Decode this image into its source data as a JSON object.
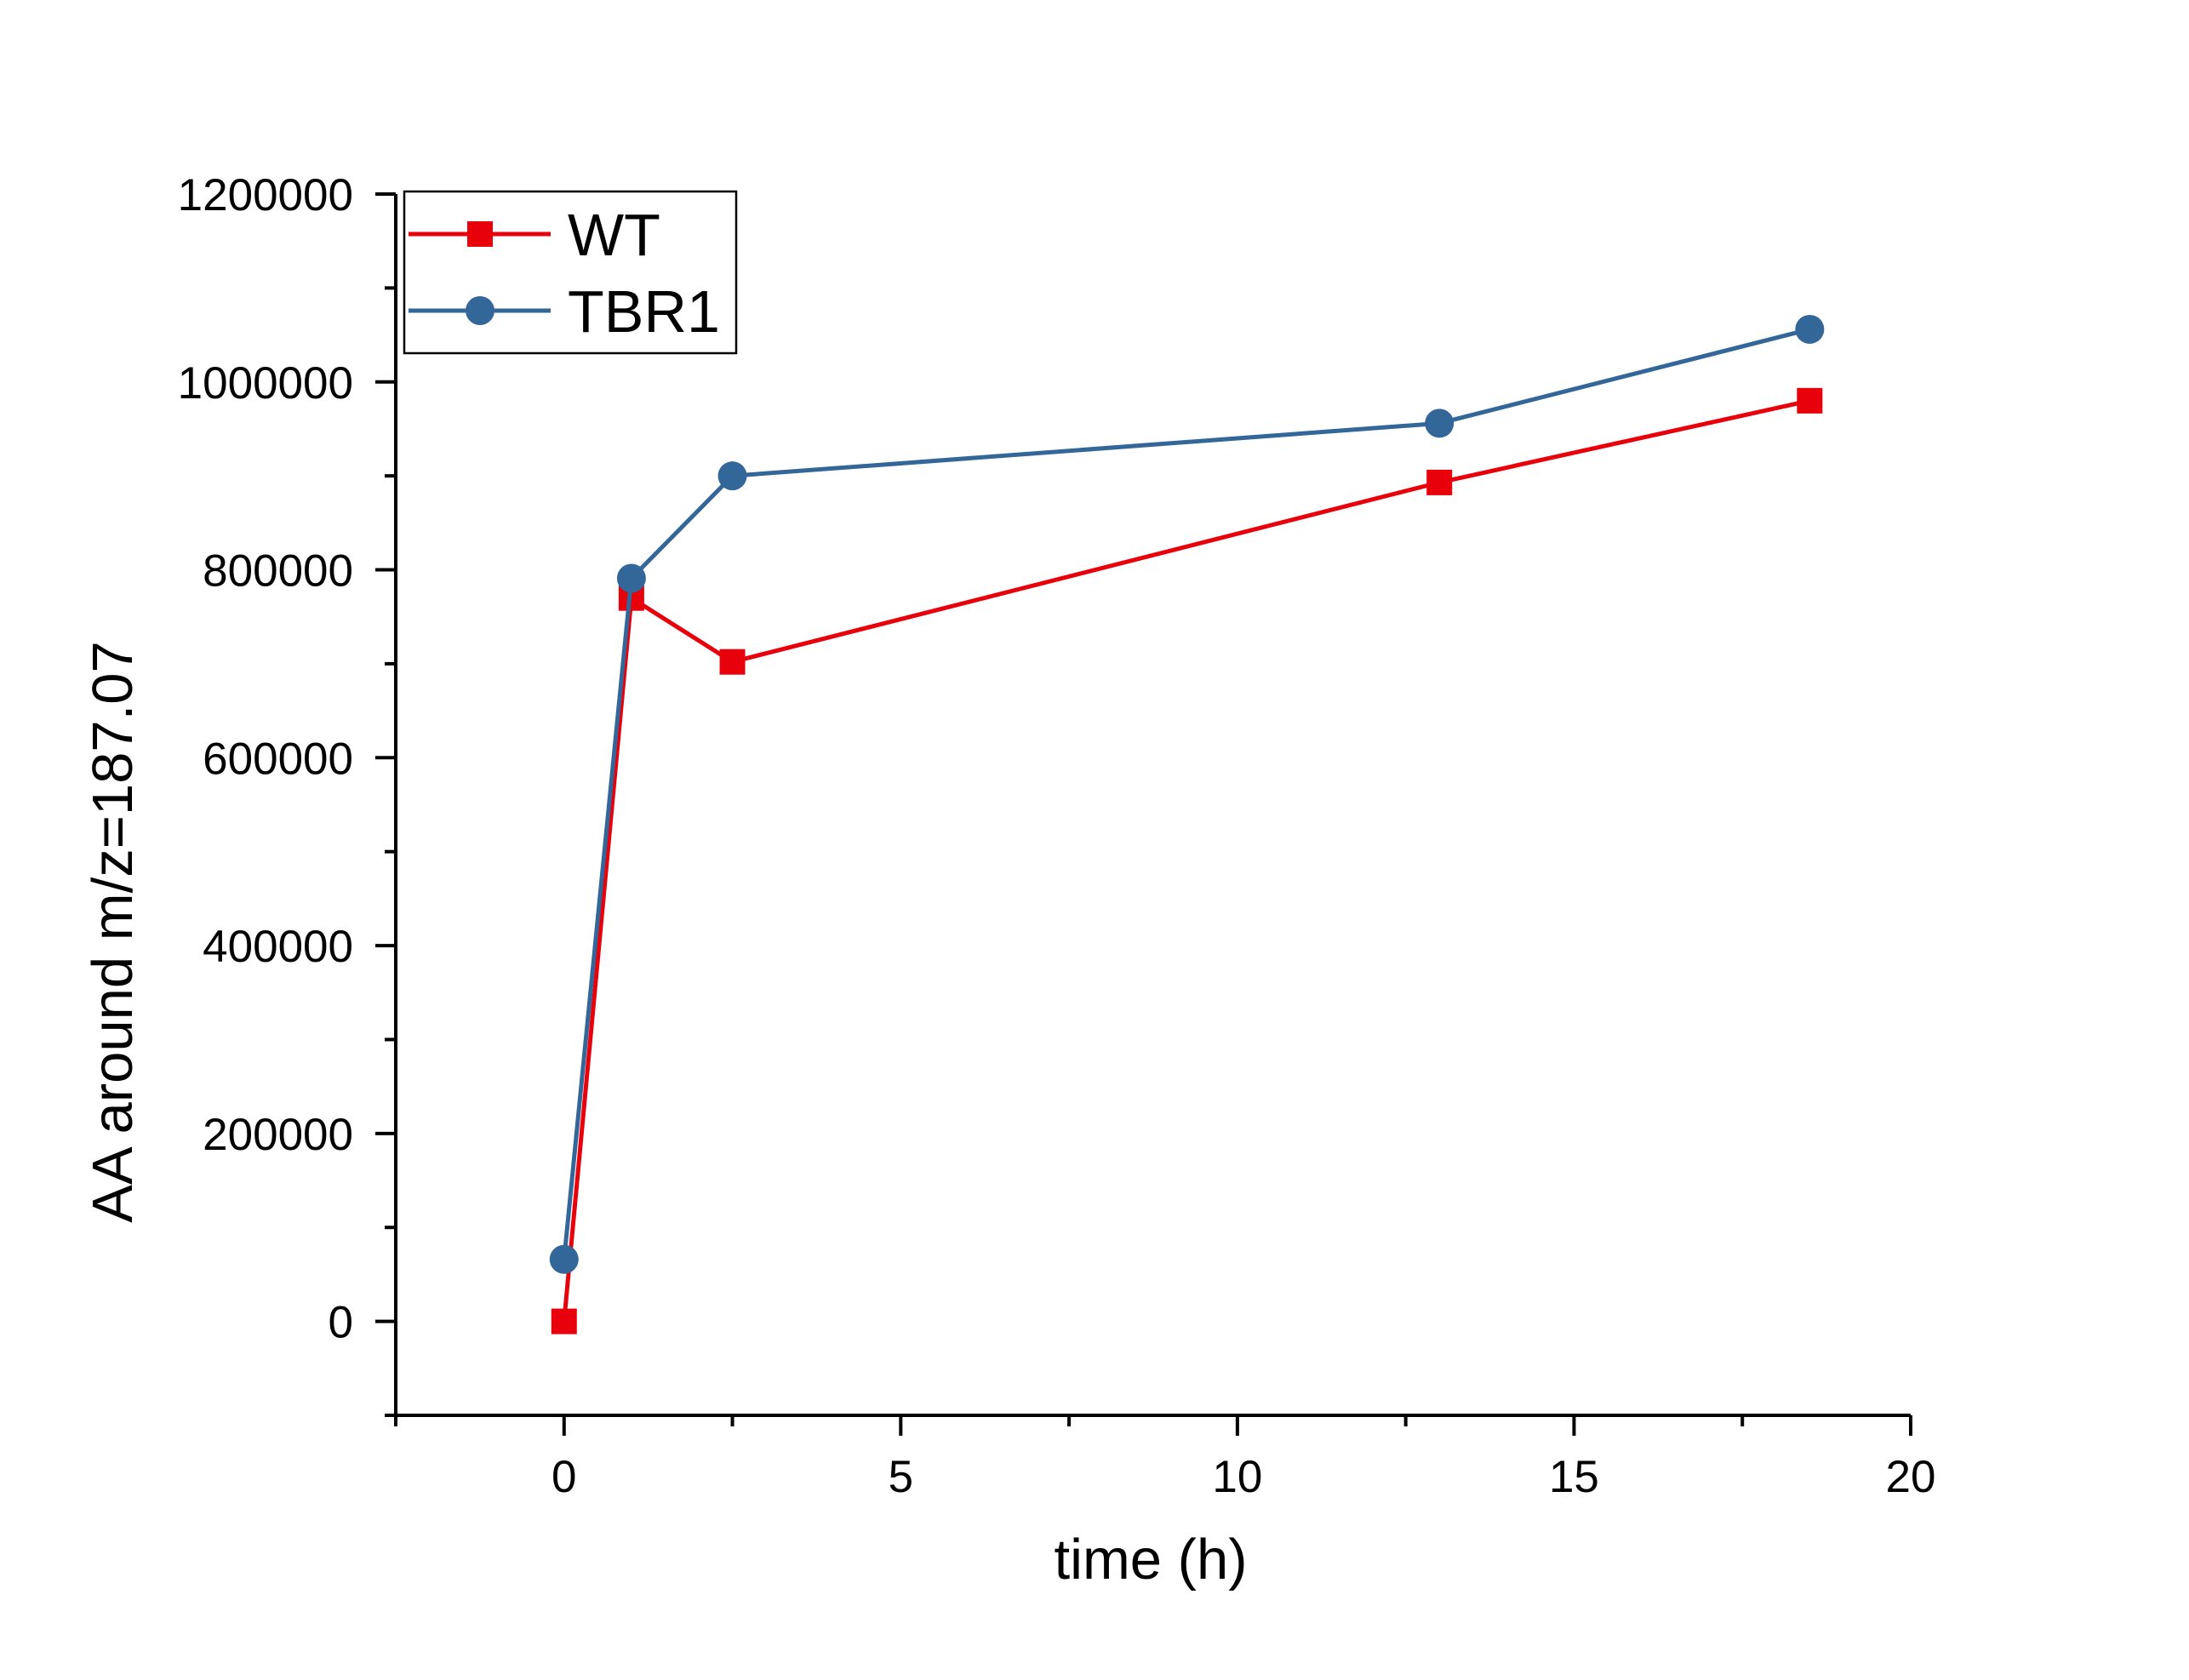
{
  "chart_data": {
    "type": "line",
    "xlabel": "time (h)",
    "ylabel": "AA around m/z=187.07",
    "xlim": [
      -2.5,
      20
    ],
    "ylim": [
      -100000,
      1200000
    ],
    "x_ticks": [
      0,
      5,
      10,
      15,
      20
    ],
    "y_ticks": [
      0,
      200000,
      400000,
      600000,
      800000,
      1000000,
      1200000
    ],
    "grid": false,
    "legend_position": "top-left",
    "series": [
      {
        "name": "WT",
        "color": "#e8000b",
        "marker": "square",
        "x": [
          0,
          1,
          2.5,
          13,
          18.5
        ],
        "y": [
          0,
          770000,
          702000,
          893000,
          980000
        ]
      },
      {
        "name": "TBR1",
        "color": "#336699",
        "marker": "circle",
        "x": [
          0,
          1,
          2.5,
          13,
          18.5
        ],
        "y": [
          66000,
          791000,
          900000,
          956000,
          1056000
        ]
      }
    ]
  }
}
